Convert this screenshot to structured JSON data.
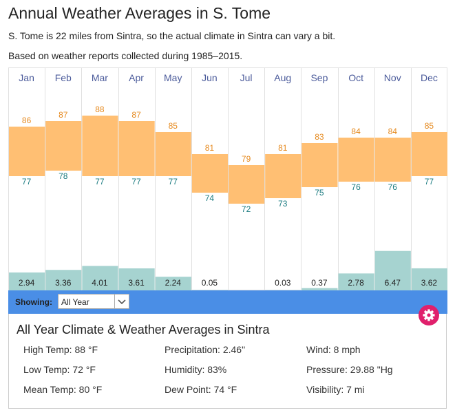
{
  "page": {
    "title": "Annual Weather Averages in S. Tome",
    "note": "S. Tome is 22 miles from Sintra, so the actual climate in Sintra can vary a bit.",
    "period": "Based on weather reports collected during 1985–2015."
  },
  "chart_data": {
    "type": "bar",
    "categories": [
      "Jan",
      "Feb",
      "Mar",
      "Apr",
      "May",
      "Jun",
      "Jul",
      "Aug",
      "Sep",
      "Oct",
      "Nov",
      "Dec"
    ],
    "series": [
      {
        "values": [
          86,
          87,
          88,
          87,
          85,
          81,
          79,
          81,
          83,
          84,
          84,
          85
        ]
      },
      {
        "values": [
          77,
          78,
          77,
          77,
          77,
          74,
          72,
          73,
          75,
          76,
          76,
          77
        ]
      },
      {
        "values": [
          2.94,
          3.36,
          4.01,
          3.61,
          2.24,
          0.05,
          0,
          0.03,
          0.37,
          2.78,
          6.47,
          3.62
        ]
      }
    ],
    "precip_labels": [
      "2.94",
      "3.36",
      "4.01",
      "3.61",
      "2.24",
      "0.05",
      "",
      "0.03",
      "0.37",
      "2.78",
      "6.47",
      "3.62"
    ],
    "temp_range": [
      63,
      89
    ],
    "precip_max": 7.0,
    "colors": {
      "temp_band": "#ffbf73",
      "high_text": "#e68a1f",
      "low_text": "#1a7b80",
      "precip_bar": "#a6d3d0",
      "month_text": "#4a5a9a",
      "divider": "#e0e0e0"
    }
  },
  "filter": {
    "label": "Showing:",
    "selected": "All Year"
  },
  "summary": {
    "title": "All Year Climate & Weather Averages in Sintra",
    "high": "High Temp: 88 °F",
    "low": "Low Temp: 72 °F",
    "mean": "Mean Temp: 80 °F",
    "precip": "Precipitation: 2.46\"",
    "humidity": "Humidity: 83%",
    "dew": "Dew Point: 74 °F",
    "wind": "Wind: 8 mph",
    "pressure": "Pressure: 29.88 \"Hg",
    "visibility": "Visibility: 7 mi"
  },
  "icons": {
    "settings": "gear-icon",
    "dropdown": "chevron-down-icon"
  }
}
